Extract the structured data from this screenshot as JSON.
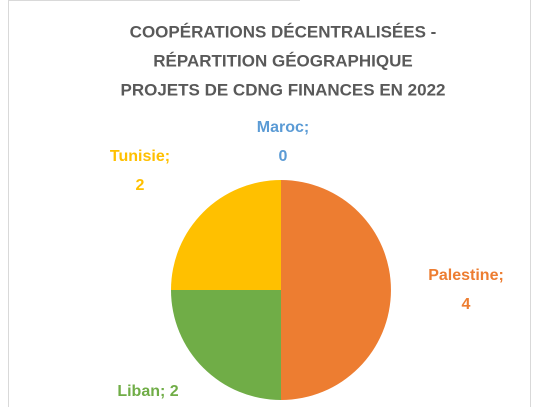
{
  "chart_data": {
    "type": "pie",
    "title": [
      "COOPÉRATIONS DÉCENTRALISÉES -",
      "RÉPARTITION GÉOGRAPHIQUE",
      "PROJETS DE CDNG FINANCES EN 2022"
    ],
    "categories": [
      "Maroc",
      "Palestine",
      "Liban",
      "Tunisie"
    ],
    "values": [
      0,
      4,
      2,
      2
    ],
    "colors": [
      "#5b9bd5",
      "#ed7d31",
      "#70ad47",
      "#ffc000"
    ],
    "data_labels": [
      [
        "Maroc;",
        "0"
      ],
      [
        "Palestine;",
        "4"
      ],
      [
        "Liban; 2"
      ],
      [
        "Tunisie;",
        "2"
      ]
    ]
  }
}
